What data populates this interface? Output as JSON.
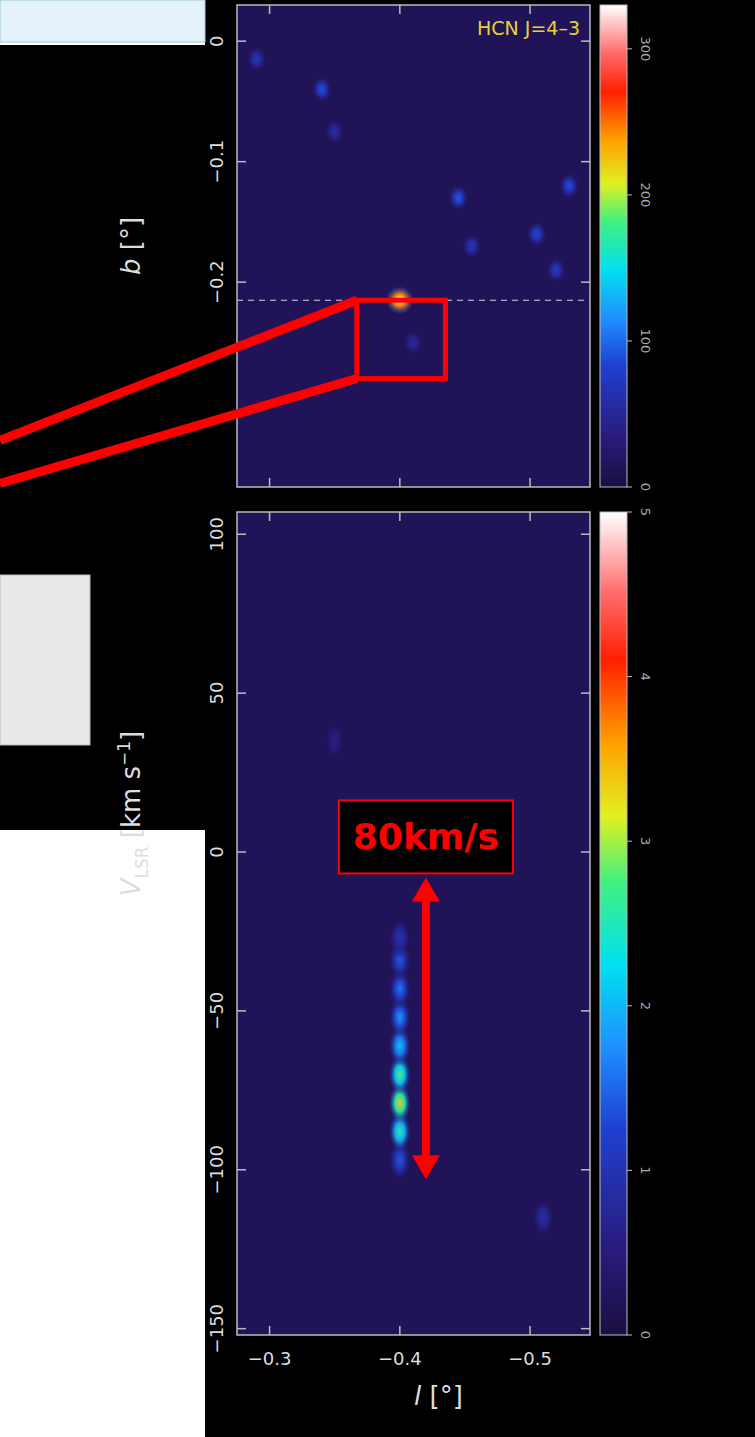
{
  "chart_data": [
    {
      "type": "heatmap",
      "annotation": "HCN J=4–3",
      "y_label": [
        "b",
        " [°]"
      ],
      "xlim": [
        -0.275,
        -0.546
      ],
      "ylim": [
        -0.37,
        0.03
      ],
      "xticks": [
        {
          "value": -0.3,
          "label": "−0.3"
        },
        {
          "value": -0.4,
          "label": "−0.4"
        },
        {
          "value": -0.5,
          "label": "−0.5"
        }
      ],
      "yticks": [
        {
          "value": -0.2,
          "label": "−0.2"
        },
        {
          "value": -0.1,
          "label": "−0.1"
        },
        0
      ],
      "tick_labels": "y",
      "colorbar": {
        "range": [
          0,
          330
        ],
        "ticks": [
          0,
          100,
          200,
          300
        ]
      },
      "points": {
        "x": [
          -0.4,
          -0.29,
          -0.34,
          -0.35,
          -0.445,
          -0.455,
          -0.505,
          -0.53,
          -0.52,
          -0.41
        ],
        "y": [
          -0.215,
          -0.015,
          -0.04,
          -0.075,
          -0.13,
          -0.17,
          -0.16,
          -0.12,
          -0.19,
          -0.25
        ],
        "values": [
          330,
          70,
          90,
          60,
          95,
          70,
          85,
          90,
          75,
          55
        ]
      },
      "reference_line": -0.215,
      "highlight": {
        "xlim": [
          -0.367,
          -0.435
        ],
        "ylim": [
          -0.28,
          -0.215
        ]
      }
    },
    {
      "type": "heatmap",
      "x_label": [
        "l",
        " [°]"
      ],
      "y_label": [
        "V",
        "LSR",
        " [km s",
        "−1",
        "]"
      ],
      "xlim": [
        -0.275,
        -0.546
      ],
      "ylim": [
        -152,
        107
      ],
      "xticks": [
        {
          "value": -0.3,
          "label": "−0.3"
        },
        {
          "value": -0.4,
          "label": "−0.4"
        },
        {
          "value": -0.5,
          "label": "−0.5"
        }
      ],
      "yticks": [
        {
          "value": -150,
          "label": "−150"
        },
        {
          "value": -100,
          "label": "−100"
        },
        {
          "value": -50,
          "label": "−50"
        },
        0,
        50,
        100
      ],
      "tick_labels": true,
      "colorbar": {
        "range": [
          0,
          5
        ],
        "ticks": [
          0,
          1,
          2,
          3,
          4,
          5
        ]
      },
      "points": {
        "x": [
          -0.4,
          -0.4,
          -0.4,
          -0.4,
          -0.4,
          -0.4,
          -0.4,
          -0.4,
          -0.4,
          -0.51,
          -0.35
        ],
        "y": [
          -97,
          -88,
          -79,
          -70,
          -61,
          -52,
          -43,
          -34,
          -27,
          -115,
          35
        ],
        "values": [
          1.4,
          2.6,
          3.4,
          2.8,
          2.1,
          1.8,
          1.6,
          1.4,
          1.0,
          0.9,
          0.6
        ]
      },
      "arrow": {
        "x": -0.42,
        "y": [
          -8,
          -103
        ],
        "label": "80km/s"
      }
    }
  ]
}
